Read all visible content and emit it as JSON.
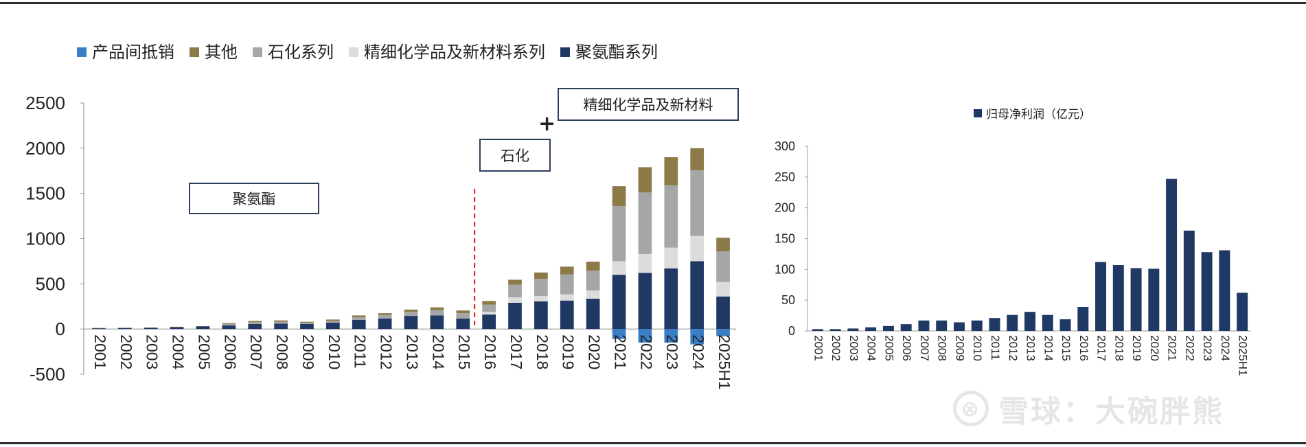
{
  "chart_data": [
    {
      "type": "bar",
      "stacked": true,
      "categories": [
        "2001",
        "2002",
        "2003",
        "2004",
        "2005",
        "2006",
        "2007",
        "2008",
        "2009",
        "2010",
        "2011",
        "2012",
        "2013",
        "2014",
        "2015",
        "2016",
        "2017",
        "2018",
        "2019",
        "2020",
        "2021",
        "2022",
        "2023",
        "2024",
        "2025H1"
      ],
      "series": [
        {
          "name": "聚氨酯系列",
          "color": "#1f3864",
          "values": [
            8,
            10,
            12,
            22,
            30,
            40,
            55,
            60,
            55,
            70,
            100,
            115,
            145,
            150,
            115,
            160,
            290,
            305,
            315,
            335,
            600,
            620,
            670,
            750,
            360
          ]
        },
        {
          "name": "精细化学品及新材料系列",
          "color": "#dcdcdc",
          "values": [
            0,
            0,
            0,
            0,
            0,
            0,
            0,
            0,
            0,
            0,
            0,
            0,
            0,
            0,
            0,
            30,
            60,
            60,
            70,
            90,
            150,
            210,
            230,
            280,
            160
          ]
        },
        {
          "name": "石化系列",
          "color": "#a6a6a6",
          "values": [
            0,
            0,
            0,
            0,
            0,
            15,
            20,
            20,
            15,
            20,
            30,
            40,
            45,
            60,
            60,
            80,
            140,
            190,
            220,
            220,
            610,
            680,
            690,
            725,
            340
          ]
        },
        {
          "name": "其他",
          "color": "#8c7a48",
          "values": [
            4,
            5,
            5,
            3,
            2,
            10,
            15,
            15,
            10,
            15,
            20,
            20,
            25,
            30,
            30,
            40,
            55,
            70,
            85,
            100,
            220,
            280,
            310,
            245,
            150
          ]
        },
        {
          "name": "产品间抵销",
          "color": "#3a7fc6",
          "values": [
            0,
            0,
            0,
            0,
            0,
            0,
            0,
            0,
            0,
            0,
            0,
            0,
            0,
            0,
            0,
            0,
            0,
            0,
            0,
            0,
            -110,
            -150,
            -150,
            -170,
            -80
          ]
        }
      ],
      "legend_order": [
        "产品间抵销",
        "其他",
        "石化系列",
        "精细化学品及新材料系列",
        "聚氨酯系列"
      ],
      "yticks": [
        "-500",
        "0",
        "500",
        "1000",
        "1500",
        "2000",
        "2500"
      ],
      "ylim": [
        -500,
        2500
      ],
      "legend_position": "top-left",
      "annotations": [
        "聚氨酯",
        "石化",
        "+",
        "精细化学品及新材料"
      ],
      "divider_after": "2015",
      "divider_color": "#e01010"
    },
    {
      "type": "bar",
      "categories": [
        "2001",
        "2002",
        "2003",
        "2004",
        "2005",
        "2006",
        "2007",
        "2008",
        "2009",
        "2010",
        "2011",
        "2012",
        "2013",
        "2014",
        "2015",
        "2016",
        "2017",
        "2018",
        "2019",
        "2020",
        "2021",
        "2022",
        "2023",
        "2024",
        "2025H1"
      ],
      "series": [
        {
          "name": "归母净利润（亿元）",
          "color": "#1f3864",
          "values": [
            3,
            3,
            4,
            6,
            8,
            11,
            17,
            17,
            14,
            17,
            21,
            26,
            31,
            26,
            19,
            39,
            112,
            107,
            102,
            101,
            247,
            163,
            128,
            131,
            62
          ]
        }
      ],
      "yticks": [
        "0",
        "50",
        "100",
        "150",
        "200",
        "250",
        "300"
      ],
      "ylim": [
        0,
        300
      ],
      "legend_position": "top"
    }
  ],
  "watermark": {
    "logo": "⊗",
    "text": "雪球：大碗胖熊"
  }
}
